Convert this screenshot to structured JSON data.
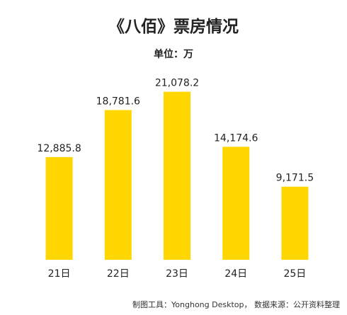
{
  "chart_data": {
    "type": "bar",
    "title": "《八佰》票房情况",
    "subtitle": "单位：万",
    "categories": [
      "21日",
      "22日",
      "23日",
      "24日",
      "25日"
    ],
    "values": [
      12885.8,
      18781.6,
      21078.2,
      14174.6,
      9171.5
    ],
    "value_labels": [
      "12,885.8",
      "18,781.6",
      "21,078.2",
      "14,174.6",
      "9,171.5"
    ],
    "ylim": [
      0,
      23000
    ],
    "grid": false,
    "legend": "none",
    "bar_color": "#FFD600"
  },
  "footer": "制图工具：Yonghong Desktop， 数据来源：公开资料整理"
}
